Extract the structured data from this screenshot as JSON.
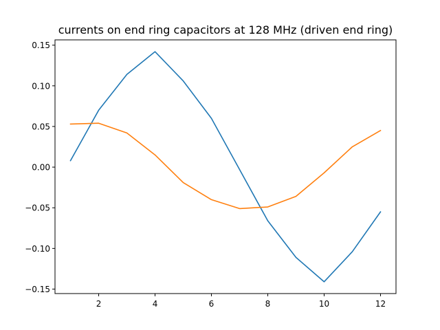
{
  "chart_data": {
    "type": "line",
    "title": "currents on end ring capacitors at 128 MHz (driven end ring)",
    "xlabel": "",
    "ylabel": "",
    "xlim": [
      0.45,
      12.55
    ],
    "ylim": [
      -0.1555,
      0.1565
    ],
    "grid": false,
    "legend": "none",
    "x_ticks": [
      2,
      4,
      6,
      8,
      10,
      12
    ],
    "x_tick_labels": [
      "2",
      "4",
      "6",
      "8",
      "10",
      "12"
    ],
    "y_ticks": [
      -0.15,
      -0.1,
      -0.05,
      0.0,
      0.05,
      0.1,
      0.15
    ],
    "y_tick_labels": [
      "−0.15",
      "−0.10",
      "−0.05",
      "0.00",
      "0.05",
      "0.10",
      "0.15"
    ],
    "x": [
      1,
      2,
      3,
      4,
      5,
      6,
      7,
      8,
      9,
      10,
      11,
      12
    ],
    "series": [
      {
        "color": "#1f77b4",
        "values": [
          0.008,
          0.07,
          0.114,
          0.142,
          0.106,
          0.06,
          -0.003,
          -0.066,
          -0.111,
          -0.141,
          -0.104,
          -0.055
        ]
      },
      {
        "color": "#ff7f0e",
        "values": [
          0.053,
          0.054,
          0.042,
          0.015,
          -0.019,
          -0.04,
          -0.051,
          -0.049,
          -0.036,
          -0.007,
          0.025,
          0.045
        ]
      }
    ]
  }
}
